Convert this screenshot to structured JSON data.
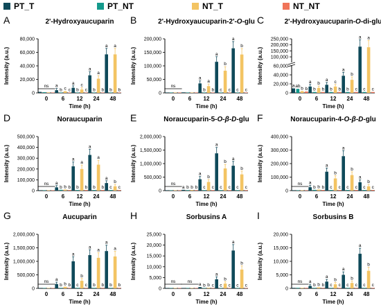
{
  "legend": [
    {
      "name": "PT_T",
      "color": "#0f4a5a"
    },
    {
      "name": "PT_NT",
      "color": "#149a8c"
    },
    {
      "name": "NT_T",
      "color": "#f3c463"
    },
    {
      "name": "NT_NT",
      "color": "#f07459"
    }
  ],
  "chart_data": [
    {
      "letter": "A",
      "type": "bar",
      "title": "2'-Hydroxyaucuparin",
      "title_parts": [
        "2'-Hydroxyaucuparin"
      ],
      "xlabel": "Time (h)",
      "ylabel": "Intensity (a.u.)",
      "ylim": [
        0,
        80000
      ],
      "yticks": [
        "0",
        "20,000",
        "40,000",
        "60,000",
        "80,000"
      ],
      "categories": [
        "0",
        "6",
        "12",
        "24",
        "48"
      ],
      "series": [
        {
          "name": "PT_T",
          "values": [
            1500,
            4000,
            7500,
            26000,
            57000
          ]
        },
        {
          "name": "PT_NT",
          "values": [
            1000,
            400,
            300,
            300,
            300
          ]
        },
        {
          "name": "NT_T",
          "values": [
            800,
            2500,
            5000,
            21000,
            57000
          ]
        },
        {
          "name": "NT_NT",
          "values": [
            500,
            300,
            300,
            300,
            300
          ]
        }
      ],
      "labels": [
        [
          "ns",
          "",
          "",
          ""
        ],
        [
          "a",
          "b",
          "c",
          "c"
        ],
        [
          "a",
          "b",
          "c",
          "c"
        ],
        [
          "a",
          "b",
          "a",
          "b"
        ],
        [
          "a",
          "b",
          "a",
          "b"
        ]
      ]
    },
    {
      "letter": "B",
      "type": "bar",
      "title": "2'-Hydroxyaucuparin-2'-O-glu",
      "title_parts": [
        "2'-Hydroxyaucuparin-2'-",
        "O",
        "-glu"
      ],
      "xlabel": "Time (h)",
      "ylabel": "Intensity (a.u.)",
      "ylim": [
        0,
        200000
      ],
      "yticks": [
        "0",
        "50,000",
        "100,000",
        "150,000",
        "200,000"
      ],
      "categories": [
        "0",
        "6",
        "12",
        "24",
        "48"
      ],
      "series": [
        {
          "name": "PT_T",
          "values": [
            800,
            2000,
            35000,
            115000,
            165000
          ]
        },
        {
          "name": "PT_NT",
          "values": [
            600,
            500,
            500,
            500,
            500
          ]
        },
        {
          "name": "NT_T",
          "values": [
            500,
            1500,
            25000,
            82000,
            142000
          ]
        },
        {
          "name": "NT_NT",
          "values": [
            400,
            400,
            400,
            400,
            400
          ]
        }
      ],
      "labels": [
        [
          "ns",
          "",
          "",
          ""
        ],
        [
          "",
          "",
          "",
          ""
        ],
        [
          "a",
          "b",
          "a",
          "b"
        ],
        [
          "a",
          "c",
          "b",
          "c"
        ],
        [
          "a",
          "c",
          "b",
          "c"
        ]
      ]
    },
    {
      "letter": "C",
      "type": "bar",
      "title": "2'-Hydroxyaucuparin-O-di-glu",
      "title_parts": [
        "2'-Hydroxyaucuparin-",
        "O",
        "-di-glu"
      ],
      "xlabel": "Time (h)",
      "ylabel": "Intensity (a.u.)",
      "ylim": [
        0,
        250000
      ],
      "yticks": [
        "0",
        "20,000",
        "40,000",
        "60,000",
        "100,000",
        "150,000",
        "200,000",
        "250,000"
      ],
      "axis_break": true,
      "categories": [
        "0",
        "6",
        "12",
        "24",
        "48"
      ],
      "series": [
        {
          "name": "PT_T",
          "values": [
            10000,
            14000,
            18000,
            38000,
            185000
          ]
        },
        {
          "name": "PT_NT",
          "values": [
            9000,
            2000,
            2000,
            2000,
            2000
          ]
        },
        {
          "name": "NT_T",
          "values": [
            4000,
            11000,
            14000,
            29000,
            180000
          ]
        },
        {
          "name": "NT_NT",
          "values": [
            3000,
            2000,
            2000,
            2000,
            2000
          ]
        }
      ],
      "labels": [
        [
          "a",
          "ab",
          "b",
          "b"
        ],
        [
          "a",
          "b",
          "b",
          "b"
        ],
        [
          "a",
          "b",
          "c",
          "b"
        ],
        [
          "a",
          "b",
          "b",
          "c"
        ],
        [
          "a",
          "c",
          "a",
          "c"
        ]
      ]
    },
    {
      "letter": "D",
      "type": "bar",
      "title": "Noraucuparin",
      "title_parts": [
        "Noraucuparin"
      ],
      "xlabel": "Time (h)",
      "ylabel": "Intensity (a.u.)",
      "ylim": [
        0,
        500000
      ],
      "yticks": [
        "0",
        "100,000",
        "200,000",
        "300,000",
        "400,000",
        "500,000"
      ],
      "categories": [
        "0",
        "6",
        "12",
        "24",
        "48"
      ],
      "series": [
        {
          "name": "PT_T",
          "values": [
            4000,
            30000,
            225000,
            330000,
            70000
          ]
        },
        {
          "name": "PT_NT",
          "values": [
            3000,
            8000,
            6000,
            6000,
            6000
          ]
        },
        {
          "name": "NT_T",
          "values": [
            3000,
            10000,
            200000,
            240000,
            40000
          ]
        },
        {
          "name": "NT_NT",
          "values": [
            2000,
            6000,
            6000,
            6000,
            6000
          ]
        }
      ],
      "labels": [
        [
          "ns",
          "",
          "",
          ""
        ],
        [
          "a",
          "b",
          "b",
          "b"
        ],
        [
          "a",
          "b",
          "a",
          "b"
        ],
        [
          "a",
          "b",
          "a",
          "b"
        ],
        [
          "a",
          "c",
          "b",
          "c"
        ]
      ]
    },
    {
      "letter": "E",
      "type": "bar",
      "title": "Noraucuparin-5-O-β-D-glu",
      "title_parts": [
        "Noraucuparin-5-",
        "O",
        "-",
        "β",
        "-",
        "D",
        "-glu"
      ],
      "xlabel": "Time (h)",
      "ylabel": "Intensity (a.u.)",
      "ylim": [
        0,
        2000000
      ],
      "yticks": [
        "0",
        "500,000",
        "1,000,000",
        "1,500,000",
        "2,000,000"
      ],
      "categories": [
        "0",
        "6",
        "12",
        "24",
        "48"
      ],
      "series": [
        {
          "name": "PT_T",
          "values": [
            10000,
            30000,
            420000,
            1380000,
            920000
          ]
        },
        {
          "name": "PT_NT",
          "values": [
            8000,
            20000,
            20000,
            20000,
            20000
          ]
        },
        {
          "name": "NT_T",
          "values": [
            8000,
            25000,
            320000,
            820000,
            600000
          ]
        },
        {
          "name": "NT_NT",
          "values": [
            6000,
            20000,
            20000,
            20000,
            20000
          ]
        }
      ],
      "labels": [
        [
          "ns",
          "",
          "",
          ""
        ],
        [
          "a",
          "b",
          "b",
          "b"
        ],
        [
          "a",
          "c",
          "b",
          "c"
        ],
        [
          "a",
          "c",
          "b",
          "c"
        ],
        [
          "a",
          "c",
          "b",
          "c"
        ]
      ]
    },
    {
      "letter": "F",
      "type": "bar",
      "title": "Noraucuparin-4-O-β-D-glu",
      "title_parts": [
        "Noraucuparin-4-",
        "O",
        "-",
        "β",
        "-",
        "D",
        "-glu"
      ],
      "xlabel": "Time (h)",
      "ylabel": "Intensity (a.u.)",
      "ylim": [
        0,
        400000
      ],
      "yticks": [
        "0",
        "100,000",
        "200,000",
        "300,000",
        "400,000"
      ],
      "categories": [
        "0",
        "6",
        "12",
        "24",
        "48"
      ],
      "series": [
        {
          "name": "PT_T",
          "values": [
            3000,
            25000,
            140000,
            255000,
            62000
          ]
        },
        {
          "name": "PT_NT",
          "values": [
            2000,
            6000,
            5000,
            5000,
            5000
          ]
        },
        {
          "name": "NT_T",
          "values": [
            2000,
            8000,
            90000,
            115000,
            32000
          ]
        },
        {
          "name": "NT_NT",
          "values": [
            1000,
            5000,
            5000,
            5000,
            5000
          ]
        }
      ],
      "labels": [
        [
          "ns",
          "",
          "",
          ""
        ],
        [
          "a",
          "b",
          "b",
          "b"
        ],
        [
          "a",
          "c",
          "b",
          "c"
        ],
        [
          "a",
          "c",
          "b",
          "c"
        ],
        [
          "a",
          "c",
          "b",
          "c"
        ]
      ]
    },
    {
      "letter": "G",
      "type": "bar",
      "title": "Aucuparin",
      "title_parts": [
        "Aucuparin"
      ],
      "xlabel": "Time (h)",
      "ylabel": "Intensity (a.u.)",
      "ylim": [
        0,
        2000000
      ],
      "yticks": [
        "0",
        "500,000",
        "1,000,000",
        "1,500,000",
        "2,000,000"
      ],
      "categories": [
        "0",
        "6",
        "12",
        "24",
        "48"
      ],
      "series": [
        {
          "name": "PT_T",
          "values": [
            10000,
            160000,
            1000000,
            1230000,
            1380000
          ]
        },
        {
          "name": "PT_NT",
          "values": [
            8000,
            20000,
            20000,
            20000,
            20000
          ]
        },
        {
          "name": "NT_T",
          "values": [
            8000,
            60000,
            280000,
            1130000,
            1180000
          ]
        },
        {
          "name": "NT_NT",
          "values": [
            6000,
            20000,
            20000,
            20000,
            20000
          ]
        }
      ],
      "labels": [
        [
          "ns",
          "",
          "",
          ""
        ],
        [
          "a",
          "b",
          "b",
          "b"
        ],
        [
          "a",
          "c",
          "b",
          "c"
        ],
        [
          "a",
          "b",
          "a",
          "b"
        ],
        [
          "a",
          "b",
          "a",
          "b"
        ]
      ]
    },
    {
      "letter": "H",
      "type": "bar",
      "title": "Sorbusins A",
      "title_parts": [
        "Sorbusins A"
      ],
      "xlabel": "Time (h)",
      "ylabel": "Intensity (a.u.)",
      "ylim": [
        0,
        25000
      ],
      "yticks": [
        "0",
        "5,000",
        "10,000",
        "15,000",
        "20,000",
        "25,000"
      ],
      "categories": [
        "0",
        "6",
        "12",
        "24",
        "48"
      ],
      "series": [
        {
          "name": "PT_T",
          "values": [
            100,
            100,
            600,
            4200,
            17500
          ]
        },
        {
          "name": "PT_NT",
          "values": [
            100,
            100,
            100,
            100,
            100
          ]
        },
        {
          "name": "NT_T",
          "values": [
            100,
            100,
            300,
            2200,
            8700
          ]
        },
        {
          "name": "NT_NT",
          "values": [
            100,
            100,
            100,
            100,
            100
          ]
        }
      ],
      "labels": [
        [
          "ns",
          "",
          "",
          ""
        ],
        [
          "ns",
          "",
          "",
          ""
        ],
        [
          "a",
          "b",
          "b",
          "c"
        ],
        [
          "a",
          "c",
          "b",
          "c"
        ],
        [
          "a",
          "c",
          "b",
          "c"
        ]
      ]
    },
    {
      "letter": "I",
      "type": "bar",
      "title": "Sorbusins B",
      "title_parts": [
        "Sorbusins B"
      ],
      "xlabel": "Time (h)",
      "ylabel": "Intensity (a.u.)",
      "ylim": [
        0,
        20000
      ],
      "yticks": [
        "0",
        "5,000",
        "10,000",
        "15,000",
        "20,000"
      ],
      "categories": [
        "0",
        "6",
        "12",
        "24",
        "48"
      ],
      "series": [
        {
          "name": "PT_T",
          "values": [
            200,
            900,
            2500,
            5000,
            12800
          ]
        },
        {
          "name": "PT_NT",
          "values": [
            200,
            200,
            200,
            200,
            200
          ]
        },
        {
          "name": "NT_T",
          "values": [
            200,
            400,
            1500,
            2000,
            6500
          ]
        },
        {
          "name": "NT_NT",
          "values": [
            200,
            200,
            200,
            200,
            200
          ]
        }
      ],
      "labels": [
        [
          "ns",
          "",
          "",
          ""
        ],
        [
          "a",
          "b",
          "b",
          "b"
        ],
        [
          "a",
          "c",
          "b",
          "c"
        ],
        [
          "a",
          "c",
          "b",
          "c"
        ],
        [
          "a",
          "c",
          "b",
          "c"
        ]
      ]
    }
  ]
}
